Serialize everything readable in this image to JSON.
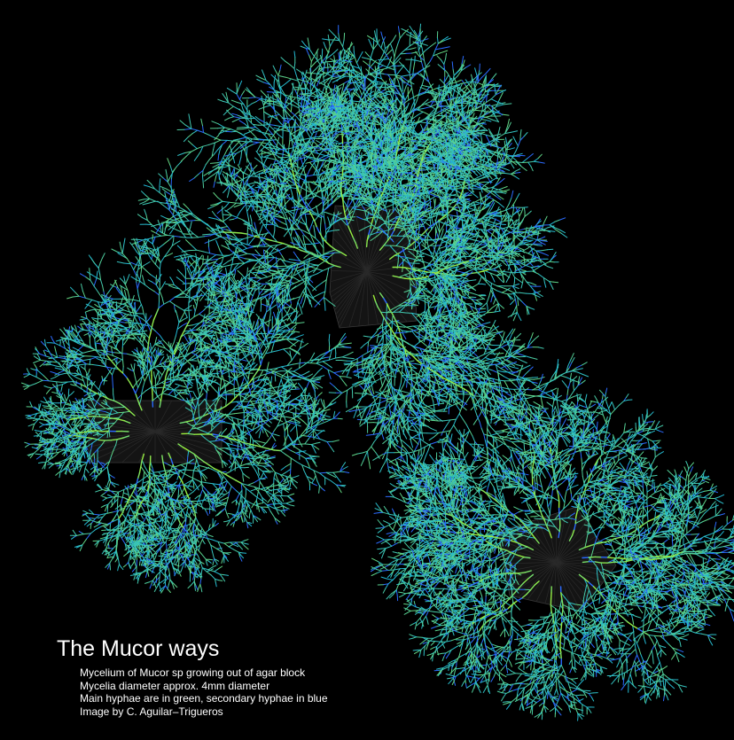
{
  "caption": {
    "title": "The Mucor ways",
    "lines": [
      "Mycelium of Mucor sp growing out of agar block",
      "Mycelia diameter approx. 4mm diameter",
      "Main hyphae are in green, secondary hyphae in blue",
      "Image by C. Aguilar–Trigueros"
    ]
  },
  "colors": {
    "background": "#000000",
    "main_hyphae": "#9df03a",
    "secondary_hyphae": "#2b6bff",
    "agar_block": "#141414",
    "agar_outline": "#3a3a3a",
    "text": "#ffffff"
  },
  "colonies": [
    {
      "name": "top-colony"
    },
    {
      "name": "left-colony"
    },
    {
      "name": "bottom-right-colony"
    }
  ]
}
